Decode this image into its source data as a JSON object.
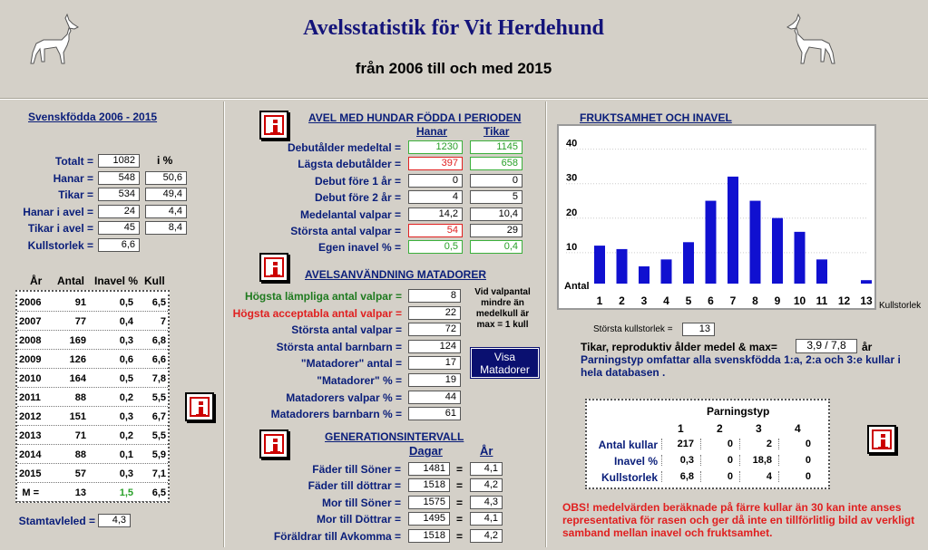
{
  "header": {
    "title": "Avelsstatistik för Vit Herdehund",
    "subtitle": "från 2006 till och med 2015"
  },
  "left": {
    "title": "Svenskfödda 2006 - 2015",
    "pct_header": "i %",
    "rows": [
      {
        "label": "Totalt =",
        "value": "1082",
        "pct": ""
      },
      {
        "label": "Hanar =",
        "value": "548",
        "pct": "50,6"
      },
      {
        "label": "Tikar =",
        "value": "534",
        "pct": "49,4"
      },
      {
        "label": "Hanar i avel =",
        "value": "24",
        "pct": "4,4"
      },
      {
        "label": "Tikar i avel =",
        "value": "45",
        "pct": "8,4"
      },
      {
        "label": "Kullstorlek =",
        "value": "6,6",
        "pct": ""
      }
    ],
    "year_headers": [
      "År",
      "Antal",
      "Inavel %",
      "Kull"
    ],
    "years": [
      [
        "2006",
        "91",
        "0,5",
        "6,5"
      ],
      [
        "2007",
        "77",
        "0,4",
        "7"
      ],
      [
        "2008",
        "169",
        "0,3",
        "6,8"
      ],
      [
        "2009",
        "126",
        "0,6",
        "6,6"
      ],
      [
        "2010",
        "164",
        "0,5",
        "7,8"
      ],
      [
        "2011",
        "88",
        "0,2",
        "5,5"
      ],
      [
        "2012",
        "151",
        "0,3",
        "6,7"
      ],
      [
        "2013",
        "71",
        "0,2",
        "5,5"
      ],
      [
        "2014",
        "88",
        "0,1",
        "5,9"
      ],
      [
        "2015",
        "57",
        "0,3",
        "7,1"
      ]
    ],
    "mean_row": [
      "M =",
      "13",
      "1,5",
      "6,5"
    ],
    "stamtavleled_label": "Stamtavleled =",
    "stamtavleled_value": "4,3"
  },
  "avel": {
    "title": "AVEL MED HUNDAR FÖDDA I PERIODEN",
    "col_hanar": "Hanar",
    "col_tikar": "Tikar",
    "rows": [
      {
        "label": "Debutålder medeltal =",
        "h": "1230",
        "t": "1145",
        "hc": "green",
        "tc": "green"
      },
      {
        "label": "Lägsta debutålder =",
        "h": "397",
        "t": "658",
        "hc": "red",
        "tc": "green"
      },
      {
        "label": "Debut före 1 år =",
        "h": "0",
        "t": "0",
        "hc": "",
        "tc": ""
      },
      {
        "label": "Debut före 2 år =",
        "h": "4",
        "t": "5",
        "hc": "",
        "tc": ""
      },
      {
        "label": "Medelantal valpar =",
        "h": "14,2",
        "t": "10,4",
        "hc": "",
        "tc": ""
      },
      {
        "label": "Största antal valpar =",
        "h": "54",
        "t": "29",
        "hc": "red",
        "tc": ""
      },
      {
        "label": "Egen inavel % =",
        "h": "0,5",
        "t": "0,4",
        "hc": "green",
        "tc": "green"
      }
    ]
  },
  "matador": {
    "title": "AVELSANVÄNDNING MATADORER",
    "rows": [
      {
        "label": "Högsta lämpliga antal valpar =",
        "v": "8",
        "c": "green"
      },
      {
        "label": "Högsta acceptabla antal valpar =",
        "v": "22",
        "c": "red"
      },
      {
        "label": "Största antal valpar =",
        "v": "72",
        "c": ""
      },
      {
        "label": "Största antal barnbarn =",
        "v": "124",
        "c": ""
      },
      {
        "label": "\"Matadorer\" antal =",
        "v": "17",
        "c": ""
      },
      {
        "label": "\"Matadorer\" % =",
        "v": "19",
        "c": ""
      },
      {
        "label": "Matadorers valpar  % =",
        "v": "44",
        "c": ""
      },
      {
        "label": "Matadorers barnbarn  % =",
        "v": "61",
        "c": ""
      }
    ],
    "note": "Vid valpantal mindre än medelkull är max = 1 kull",
    "button": "Visa Matadorer"
  },
  "gen": {
    "title": "GENERATIONSINTERVALL",
    "col_dagar": "Dagar",
    "col_ar": "År",
    "rows": [
      {
        "label": "Fäder till Söner =",
        "d": "1481",
        "a": "4,1"
      },
      {
        "label": "Fäder till döttrar =",
        "d": "1518",
        "a": "4,2"
      },
      {
        "label": "Mor till Söner =",
        "d": "1575",
        "a": "4,3"
      },
      {
        "label": "Mor till Döttrar =",
        "d": "1495",
        "a": "4,1"
      },
      {
        "label": "Föräldrar till Avkomma =",
        "d": "1518",
        "a": "4,2"
      }
    ],
    "eq": "="
  },
  "right": {
    "title": "FRUKTSAMHET OCH INAVEL",
    "storsta_label": "Största kullstorlek =",
    "storsta_value": "13",
    "tikar_label": "Tikar, reproduktiv ålder medel & max=",
    "tikar_value": "3,9 / 7,8",
    "tikar_unit": "år",
    "parning_note": "Parningstyp omfattar alla svenskfödda 1:a, 2:a och 3:e kullar i hela databasen .",
    "pt_title": "Parningstyp",
    "pt_cols": [
      "1",
      "2",
      "3",
      "4"
    ],
    "pt_rows": [
      {
        "label": "Antal kullar",
        "v": [
          "217",
          "0",
          "2",
          "0"
        ]
      },
      {
        "label": "Inavel %",
        "v": [
          "0,3",
          "0",
          "18,8",
          "0"
        ]
      },
      {
        "label": "Kullstorlek",
        "v": [
          "6,8",
          "0",
          "4",
          "0"
        ]
      }
    ],
    "obs": "OBS! medelvärden beräknade på färre kullar än 30 kan inte anses representativa för rasen och ger då inte en tillförlitlig bild av verkligt samband mellan inavel och fruktsamhet."
  },
  "chart_data": {
    "type": "bar",
    "categories": [
      "1",
      "2",
      "3",
      "4",
      "5",
      "6",
      "7",
      "8",
      "9",
      "10",
      "11",
      "12",
      "13"
    ],
    "values": [
      11,
      10,
      5,
      7,
      12,
      24,
      31,
      24,
      19,
      15,
      7,
      0,
      1
    ],
    "ylabel": "Antal",
    "xlabel": "Kullstorlek",
    "yticks": [
      "10",
      "20",
      "30",
      "40"
    ],
    "ylim": [
      0,
      42
    ],
    "color": "#1010d0"
  }
}
